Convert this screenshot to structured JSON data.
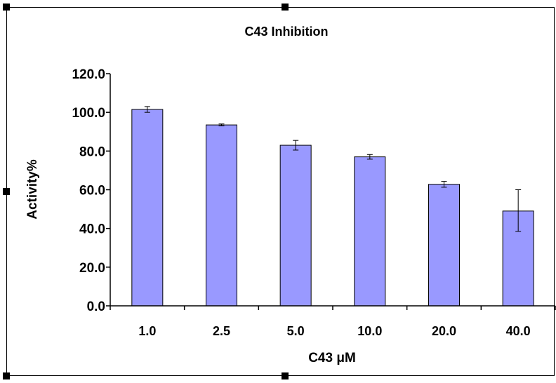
{
  "chart_data": {
    "type": "bar",
    "title": "C43 Inhibition",
    "xlabel": "C43 μM",
    "ylabel": "Activity%",
    "categories": [
      "1.0",
      "2.5",
      "5.0",
      "10.0",
      "20.0",
      "40.0"
    ],
    "values": [
      101.5,
      93.5,
      83.0,
      77.0,
      62.8,
      49.0
    ],
    "error_low": [
      1.5,
      0.5,
      2.5,
      1.2,
      1.5,
      10.5
    ],
    "error_high": [
      1.5,
      0.5,
      2.5,
      1.2,
      1.5,
      11.0
    ],
    "yticks": [
      "0.0",
      "20.0",
      "40.0",
      "60.0",
      "80.0",
      "100.0",
      "120.0"
    ],
    "ylim": [
      0,
      120
    ],
    "grid": false,
    "legend": "none",
    "bar_color": "#9999ff",
    "bar_edge_color": "#000000"
  }
}
